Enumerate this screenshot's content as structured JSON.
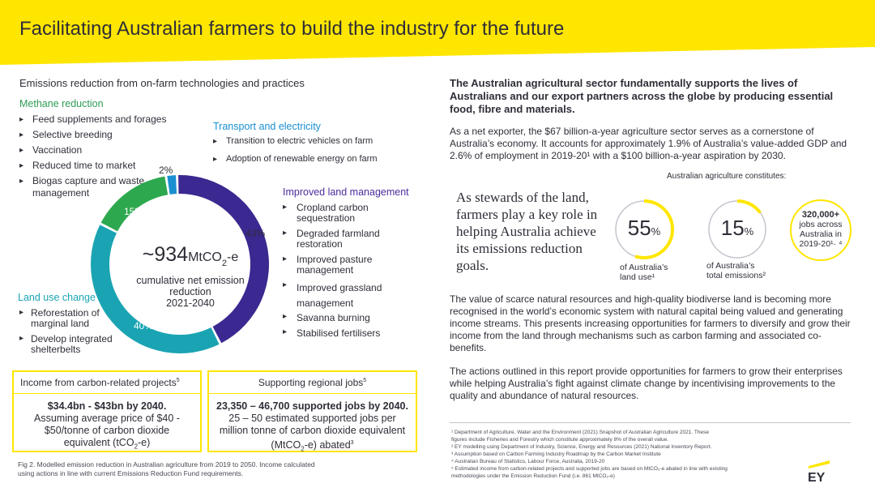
{
  "banner": {
    "title": "Facilitating Australian farmers to build the industry for the future"
  },
  "left": {
    "section_title": "Emissions reduction from on-farm technologies and practices",
    "methane": {
      "title": "Methane reduction",
      "items": [
        "Feed supplements and forages",
        "Selective breeding",
        "Vaccination",
        "Reduced time to market",
        "Biogas capture and waste",
        "management"
      ]
    },
    "transport": {
      "title": "Transport and electricity",
      "items": [
        "Transition to electric vehicles on farm",
        "Adoption of renewable energy on farm"
      ]
    },
    "land_mgmt": {
      "title": "Improved land management",
      "items": [
        "Cropland carbon",
        "sequestration",
        "Degraded farmland",
        "restoration",
        "Improved pasture",
        "management",
        "Improved grassland",
        "management",
        "Savanna burning",
        "Stabilised fertilisers"
      ]
    },
    "land_use": {
      "title": "Land use change",
      "items": [
        "Reforestation of",
        "marginal land",
        "Develop integrated",
        "shelterbelts"
      ]
    },
    "donut": {
      "value": "~934",
      "unit": "MtCO",
      "unit_sub": "2",
      "unit_tail": "-e",
      "line1": "cumulative net emission",
      "line2": "reduction",
      "line3": "2021-2040",
      "segments": [
        {
          "label": "2%",
          "value": 2,
          "color": "#1a8fd0"
        },
        {
          "label": "43%",
          "value": 43,
          "color": "#3b2890"
        },
        {
          "label": "40%",
          "value": 40,
          "color": "#1aa4b3"
        },
        {
          "label": "15%",
          "value": 15,
          "color": "#2ea84f"
        }
      ]
    },
    "income_box": {
      "title": "Income from carbon-related projects",
      "title_sup": "5",
      "bold": "$34.4bn - $43bn by 2040.",
      "line2": "Assuming average price of $40 -",
      "line3": "$50/tonne of carbon dioxide",
      "line4": "equivalent (tCO",
      "line4_sub": "2",
      "line4_tail": "-e)"
    },
    "jobs_box": {
      "title": "Supporting regional jobs",
      "title_sup": "5",
      "bold": "23,350 – 46,700 supported jobs by 2040.",
      "line2": "25 – 50 estimated supported jobs per",
      "line3": "million tonne of carbon dioxide equivalent",
      "line4": "(MtCO",
      "line4_sub": "2",
      "line4_tail": "-e) abated",
      "line4_sup": "3"
    },
    "caption": {
      "line1": "Fig 2. Modelled emission reduction in Australian agriculture from 2019 to 2050. Income calculated",
      "line2": "using actions in line with current Emissions Reduction Fund requirements."
    }
  },
  "right": {
    "title": "The Australian agricultural sector fundamentally supports the lives of Australians and our export partners across the globe by producing essential food, fibre and materials.",
    "para1": "As a net exporter, the $67 billion-a-year agriculture sector serves as a cornerstone of Australia’s economy. It accounts for approximately 1.9% of Australia’s value-added GDP and 2.6% of employment in 2019-20¹ with a $100 billion-a-year aspiration by 2030.",
    "constitutes": "Australian agriculture constitutes:",
    "quote": "As stewards of the land, farmers play a key role in helping Australia achieve its emissions reduction goals.",
    "stat_land": {
      "value": "55",
      "unit": "%",
      "label1": "of Australia’s",
      "label2": "land use¹",
      "fraction": 0.55
    },
    "stat_emissions": {
      "value": "15",
      "unit": "%",
      "label1": "of Australia’s",
      "label2": "total emissions²",
      "fraction": 0.15
    },
    "jobs": {
      "value": "320,000+",
      "line1": "jobs across",
      "line2": "Australia in",
      "line3": "2019-20¹· ⁴"
    },
    "para2": "The value of scarce natural resources and high-quality biodiverse land is becoming more recognised in the world’s economic system with natural capital being valued and generating income streams. This presents increasing opportunities for farmers to diversify and grow their income from the land through mechanisms such as carbon farming and associated co-benefits.",
    "para3": "The actions outlined in this report provide opportunities for farmers to grow their enterprises while helping Australia’s fight against climate change by incentivising improvements to the quality and abundance of natural resources.",
    "refs": [
      "¹  Department of Agriculture, Water and the Environment (2021) Snapshot of Australian Agriculture 2021. These",
      "    figures include Fisheries and Forestry which constitute approximately 8% of the overall value.",
      "²  EY modelling using Department of Industry, Science, Energy and Resources (2021) National Inventory Report.",
      "³  Assumption based on Carbon Farming Industry Roadmap by the Carbon Market Institute",
      "⁴  Australian Bureau of Statistics, Labour Force, Australia, 2019-20",
      "⁵  Estimated income from carbon-related projects and supported jobs are based on MtCO₂-e abated in line with existing",
      "    methodologies under the Emission Reduction Fund (i.e. 861 MtCO₂-e)"
    ]
  },
  "logo": {
    "text": "EY"
  },
  "colors": {
    "yellow": "#ffe600",
    "dark": "#2e2e38"
  }
}
